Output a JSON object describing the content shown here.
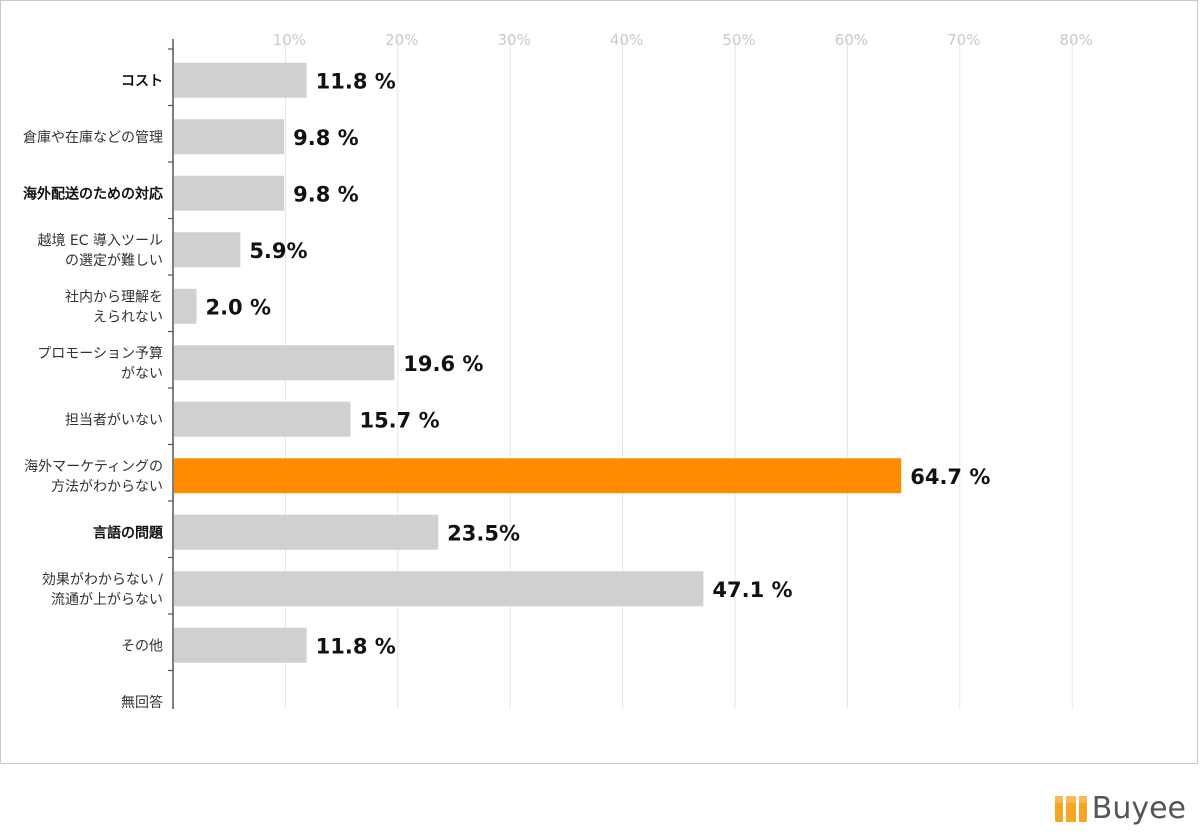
{
  "brand": {
    "name": "Buyee",
    "logo_color": "#f5a623"
  },
  "chart_data": {
    "type": "bar",
    "orientation": "horizontal",
    "title": "",
    "xlabel": "",
    "ylabel": "",
    "xlim": [
      0,
      80
    ],
    "x_ticks": [
      "10%",
      "20%",
      "30%",
      "40%",
      "50%",
      "60%",
      "70%",
      "80%"
    ],
    "grid": true,
    "default_color": "#d0d0d0",
    "highlight_color": "#ff8c00",
    "categories": [
      {
        "lines": [
          "コスト"
        ],
        "bold": true,
        "value": 11.8,
        "label": "11.8 %",
        "highlight": false
      },
      {
        "lines": [
          "倉庫や在庫などの管理"
        ],
        "bold": false,
        "value": 9.8,
        "label": "9.8 %",
        "highlight": false
      },
      {
        "lines": [
          "海外配送のための対応"
        ],
        "bold": true,
        "value": 9.8,
        "label": "9.8 %",
        "highlight": false
      },
      {
        "lines": [
          "越境 EC 導入ツール",
          "の選定が難しい"
        ],
        "bold": false,
        "value": 5.9,
        "label": "5.9%",
        "highlight": false
      },
      {
        "lines": [
          "社内から理解を",
          "えられない"
        ],
        "bold": false,
        "value": 2.0,
        "label": "2.0 %",
        "highlight": false
      },
      {
        "lines": [
          "プロモーション予算",
          "がない"
        ],
        "bold": false,
        "value": 19.6,
        "label": "19.6 %",
        "highlight": false
      },
      {
        "lines": [
          "担当者がいない"
        ],
        "bold": false,
        "value": 15.7,
        "label": "15.7 %",
        "highlight": false
      },
      {
        "lines": [
          "海外マーケティングの",
          "方法がわからない"
        ],
        "bold": false,
        "value": 64.7,
        "label": "64.7 %",
        "highlight": true
      },
      {
        "lines": [
          "言語の問題"
        ],
        "bold": true,
        "value": 23.5,
        "label": "23.5%",
        "highlight": false
      },
      {
        "lines": [
          "効果がわからない /",
          "流通が上がらない"
        ],
        "bold": false,
        "value": 47.1,
        "label": "47.1 %",
        "highlight": false
      },
      {
        "lines": [
          "その他"
        ],
        "bold": false,
        "value": 11.8,
        "label": "11.8 %",
        "highlight": false
      },
      {
        "lines": [
          "無回答"
        ],
        "bold": false,
        "value": null,
        "label": "",
        "highlight": false
      }
    ]
  }
}
